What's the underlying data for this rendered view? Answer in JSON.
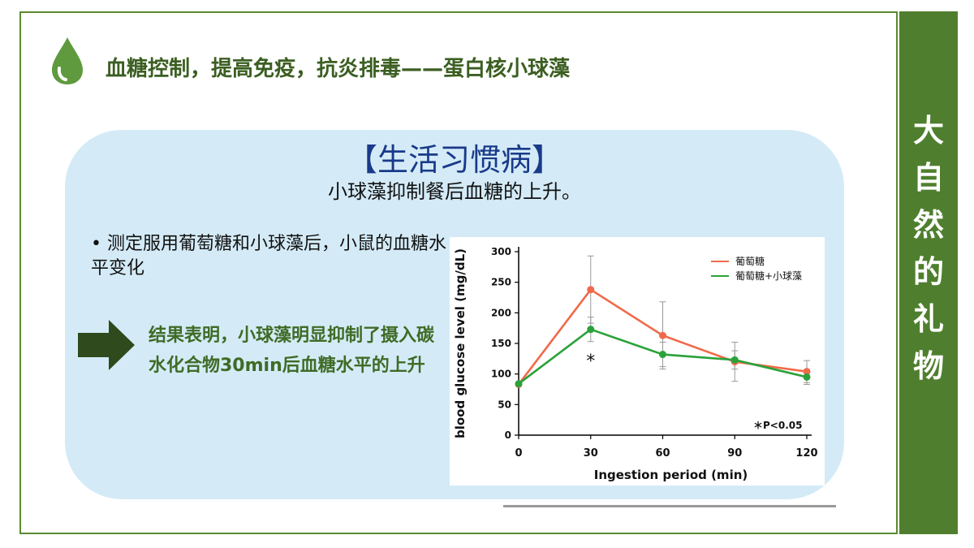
{
  "header": {
    "icon": "water-drop-icon",
    "title": "血糖控制，提高免疫，抗炎排毒——蛋白核小球藻"
  },
  "sidebar": {
    "text": [
      "大",
      "自",
      "然",
      "的",
      "礼",
      "物"
    ]
  },
  "panel": {
    "subtitle": "【生活习惯病】",
    "tagline": "小球藻抑制餐后血糖的上升。",
    "bullet": "• 测定服用葡萄糖和小球藻后，小鼠的血糖水平变化",
    "result": "结果表明，小球藻明显抑制了摄入碳水化合物30min后血糖水平的上升",
    "arrow_icon": "right-arrow-icon"
  },
  "colors": {
    "accent_green": "#4f7f2e",
    "panel_bg": "#d4ebf7",
    "subtitle": "#1a3a8a"
  },
  "chart_data": {
    "type": "line",
    "x": [
      0,
      30,
      60,
      90,
      120
    ],
    "xlabel": "Ingestion period (min)",
    "ylabel": "blood glucose level (mg/dL)",
    "xticks": [
      "0",
      "30",
      "60",
      "90",
      "120"
    ],
    "yticks": [
      "0",
      "50",
      "100",
      "150",
      "200",
      "250",
      "300"
    ],
    "xlim": [
      0,
      120
    ],
    "ylim": [
      0,
      300
    ],
    "grid": false,
    "legend_position": "top-right",
    "series": [
      {
        "name": "葡萄糖",
        "color": "#f06a4a",
        "values": [
          83,
          238,
          163,
          120,
          104
        ],
        "error": [
          0,
          55,
          55,
          32,
          18
        ]
      },
      {
        "name": "葡萄糖+小球藻",
        "color": "#2aa23a",
        "values": [
          84,
          173,
          132,
          123,
          95
        ],
        "error": [
          0,
          20,
          20,
          15,
          12
        ]
      }
    ],
    "annotations": {
      "marker": "*",
      "marker_x": 30,
      "note": "＊P<0.05"
    }
  }
}
